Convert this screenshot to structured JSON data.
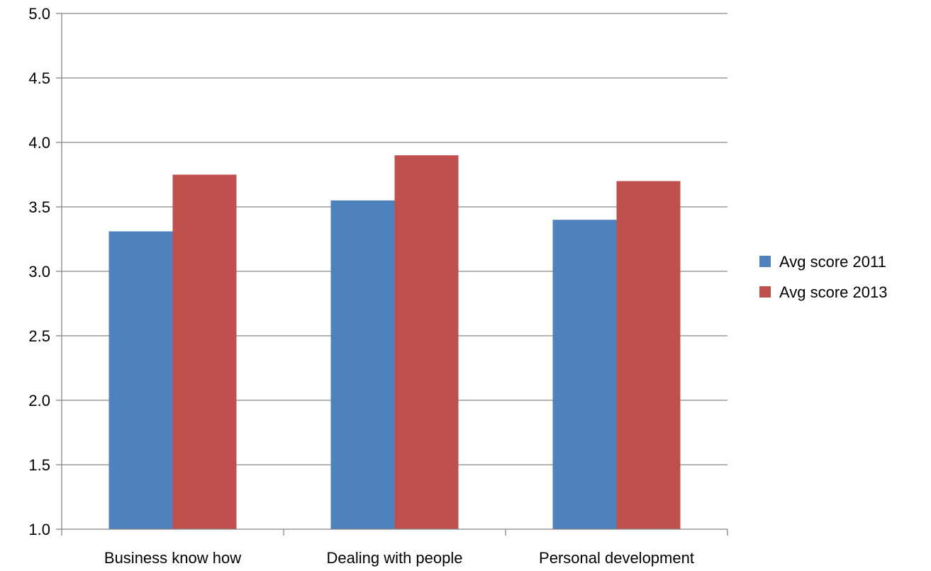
{
  "chart_data": {
    "type": "bar",
    "categories": [
      "Business know how",
      "Dealing with people",
      "Personal development"
    ],
    "series": [
      {
        "name": "Avg score 2011",
        "color": "#4F81BD",
        "values": [
          3.31,
          3.55,
          3.4
        ]
      },
      {
        "name": "Avg score 2013",
        "color": "#C0504D",
        "values": [
          3.75,
          3.9,
          3.7
        ]
      }
    ],
    "title": "",
    "xlabel": "",
    "ylabel": "",
    "ylim": [
      1.0,
      5.0
    ],
    "yticks": [
      1.0,
      1.5,
      2.0,
      2.5,
      3.0,
      3.5,
      4.0,
      4.5,
      5.0
    ],
    "ytick_labels": [
      "1.0",
      "1.5",
      "2.0",
      "2.5",
      "3.0",
      "3.5",
      "4.0",
      "4.5",
      "5.0"
    ],
    "grid": true,
    "legend_position": "right"
  }
}
